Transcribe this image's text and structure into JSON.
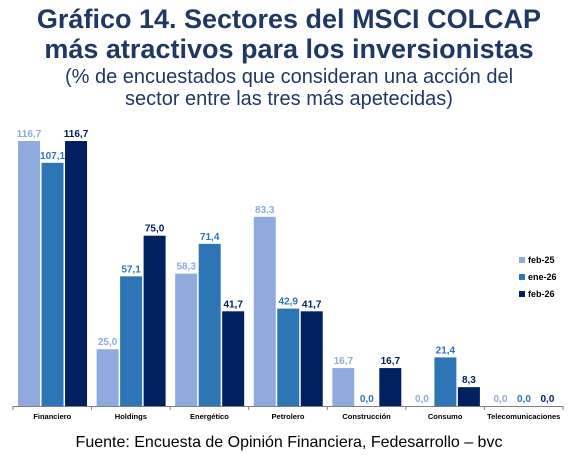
{
  "title_line1": "Gráfico 14. Sectores del MSCI COLCAP",
  "title_line2": "más atractivos para los inversionistas",
  "subtitle_line1": "(% de encuestados que consideran una acción del",
  "subtitle_line2": "sector entre las tres más apetecidas)",
  "source": "Fuente: Encuesta de Opinión Financiera, Fedesarrollo – bvc",
  "chart_data": {
    "type": "bar",
    "categories": [
      "Financiero",
      "Holdings",
      "Energético",
      "Petrolero",
      "Construcción",
      "Consumo",
      "Telecomunicaciones"
    ],
    "series": [
      {
        "name": "feb-25",
        "color": "#8faadc",
        "values": [
          116.7,
          25.0,
          58.3,
          83.3,
          16.7,
          0.0,
          0.0
        ],
        "labels": [
          "116,7",
          "25,0",
          "58,3",
          "83,3",
          "16,7",
          "0,0",
          "0,0"
        ]
      },
      {
        "name": "ene-26",
        "color": "#2e75b6",
        "values": [
          107.1,
          57.1,
          71.4,
          42.9,
          0.0,
          21.4,
          0.0
        ],
        "labels": [
          "107,1",
          "57,1",
          "71,4",
          "42,9",
          "0,0",
          "21,4",
          "0,0"
        ]
      },
      {
        "name": "feb-26",
        "color": "#002060",
        "values": [
          116.7,
          75.0,
          41.7,
          41.7,
          16.7,
          8.3,
          0.0
        ],
        "labels": [
          "116,7",
          "75,0",
          "41,7",
          "41,7",
          "16,7",
          "8,3",
          "0,0"
        ]
      }
    ],
    "ylim": [
      0,
      116.7
    ],
    "grid": false,
    "legend_position": "right"
  }
}
